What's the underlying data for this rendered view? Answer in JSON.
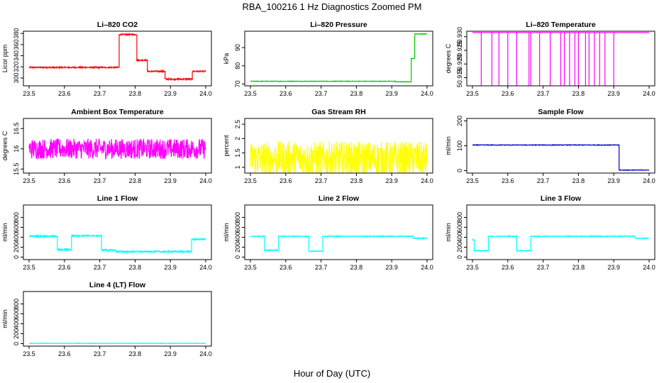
{
  "title": "RBA_100216  1 Hz Diagnostics Zoomed PM",
  "xlabel": "Hour of Day (UTC)",
  "chart_data": [
    {
      "type": "line",
      "title": "Li–820 CO2",
      "ylabel": "Licor ppm",
      "color": "#ff0000",
      "xlim": [
        23.5,
        24.0
      ],
      "ylim": [
        286,
        384
      ],
      "yticks": [
        300,
        320,
        340,
        360,
        380
      ],
      "xticks": [
        23.5,
        23.6,
        23.7,
        23.8,
        23.9,
        24.0
      ],
      "segments": [
        [
          23.5,
          23.755,
          319
        ],
        [
          23.755,
          23.805,
          378
        ],
        [
          23.805,
          23.835,
          332
        ],
        [
          23.835,
          23.885,
          312
        ],
        [
          23.885,
          23.962,
          298
        ],
        [
          23.962,
          24.0,
          312
        ]
      ],
      "noise": 1.2
    },
    {
      "type": "line",
      "title": "Li–820 Pressure",
      "ylabel": "kPa",
      "color": "#00cc00",
      "xlim": [
        23.5,
        24.0
      ],
      "ylim": [
        69,
        99
      ],
      "yticks": [
        70,
        80,
        90
      ],
      "xticks": [
        23.5,
        23.6,
        23.7,
        23.8,
        23.9,
        24.0
      ],
      "segments": [
        [
          23.5,
          23.91,
          71.5
        ],
        [
          23.91,
          23.955,
          71.2
        ],
        [
          23.955,
          23.965,
          84
        ],
        [
          23.965,
          24.0,
          97.5
        ]
      ],
      "noise": 0.15
    },
    {
      "type": "line",
      "title": "Li–820 Temperature",
      "ylabel": "degrees C",
      "color": "#ff00ff",
      "xlim": [
        23.5,
        24.0
      ],
      "ylim": [
        50.912,
        50.932
      ],
      "yticks": [
        50.915,
        50.92,
        50.925,
        50.93
      ],
      "xticks": [
        23.5,
        23.6,
        23.7,
        23.8,
        23.9,
        24.0
      ],
      "segments": [
        [
          23.5,
          24.0,
          50.9315
        ]
      ],
      "drops": [
        23.525,
        23.555,
        23.575,
        23.6,
        23.625,
        23.66,
        23.665,
        23.69,
        23.72,
        23.75,
        23.76,
        23.775,
        23.79,
        23.8,
        23.82,
        23.83,
        23.845,
        23.86,
        23.875,
        23.9
      ],
      "dropto": 50.912,
      "noise": 0
    },
    {
      "type": "line",
      "title": "Ambient Box Temperature",
      "ylabel": "degrees C",
      "color": "#ff00ff",
      "xlim": [
        23.5,
        24.0
      ],
      "ylim": [
        15.4,
        16.75
      ],
      "yticks": [
        15.5,
        16.0,
        16.5
      ],
      "xticks": [
        23.5,
        23.6,
        23.7,
        23.8,
        23.9,
        24.0
      ],
      "segments": [
        [
          23.5,
          24.0,
          16.0
        ]
      ],
      "noise": 0.25
    },
    {
      "type": "line",
      "title": "Gas Stream RH",
      "ylabel": "percent",
      "color": "#ffff00",
      "xlim": [
        23.5,
        24.0
      ],
      "ylim": [
        0.8,
        2.7
      ],
      "yticks": [
        1.0,
        1.5,
        2.0,
        2.5
      ],
      "xticks": [
        23.5,
        23.6,
        23.7,
        23.8,
        23.9,
        24.0
      ],
      "segments": [
        [
          23.5,
          24.0,
          1.3
        ]
      ],
      "noise": 0.6
    },
    {
      "type": "line",
      "title": "Sample Flow",
      "ylabel": "ml/min",
      "color": "#0000cc",
      "xlim": [
        23.5,
        24.0
      ],
      "ylim": [
        -10,
        210
      ],
      "yticks": [
        0,
        100,
        200
      ],
      "xticks": [
        23.5,
        23.6,
        23.7,
        23.8,
        23.9,
        24.0
      ],
      "segments": [
        [
          23.5,
          23.915,
          103
        ],
        [
          23.915,
          24.0,
          2
        ]
      ],
      "noise": 1.2
    },
    {
      "type": "line",
      "title": "Line 1 Flow",
      "ylabel": "ml/min",
      "color": "#00ffff",
      "xlim": [
        23.5,
        24.0
      ],
      "ylim": [
        -50,
        1050
      ],
      "yticks": [
        0,
        200,
        400,
        600,
        800
      ],
      "xticks": [
        23.5,
        23.6,
        23.7,
        23.8,
        23.9,
        24.0
      ],
      "segments": [
        [
          23.5,
          23.58,
          420
        ],
        [
          23.58,
          23.62,
          150
        ],
        [
          23.62,
          23.705,
          430
        ],
        [
          23.705,
          23.745,
          140
        ],
        [
          23.745,
          23.96,
          110
        ],
        [
          23.96,
          24.0,
          360
        ]
      ],
      "noise": 15
    },
    {
      "type": "line",
      "title": "Line 2 Flow",
      "ylabel": "ml/min",
      "color": "#00ffff",
      "xlim": [
        23.5,
        24.0
      ],
      "ylim": [
        -50,
        1050
      ],
      "yticks": [
        0,
        200,
        400,
        600,
        800
      ],
      "xticks": [
        23.5,
        23.6,
        23.7,
        23.8,
        23.9,
        24.0
      ],
      "segments": [
        [
          23.5,
          23.54,
          420
        ],
        [
          23.54,
          23.58,
          140
        ],
        [
          23.58,
          23.665,
          420
        ],
        [
          23.665,
          23.705,
          120
        ],
        [
          23.705,
          23.96,
          420
        ],
        [
          23.96,
          24.0,
          380
        ]
      ],
      "noise": 8
    },
    {
      "type": "line",
      "title": "Line 3 Flow",
      "ylabel": "ml/min",
      "color": "#00ffff",
      "xlim": [
        23.5,
        24.0
      ],
      "ylim": [
        -50,
        1050
      ],
      "yticks": [
        0,
        200,
        400,
        600,
        800
      ],
      "xticks": [
        23.5,
        23.6,
        23.7,
        23.8,
        23.9,
        24.0
      ],
      "segments": [
        [
          23.5,
          23.505,
          350
        ],
        [
          23.505,
          23.545,
          130
        ],
        [
          23.545,
          23.625,
          420
        ],
        [
          23.625,
          23.665,
          130
        ],
        [
          23.665,
          23.96,
          420
        ],
        [
          23.96,
          24.0,
          380
        ]
      ],
      "noise": 8
    },
    {
      "type": "line",
      "title": "Line 4 (LT) Flow",
      "ylabel": "ml/min",
      "color": "#00ffff",
      "xlim": [
        23.5,
        24.0
      ],
      "ylim": [
        -50,
        1050
      ],
      "yticks": [
        0,
        200,
        400,
        600,
        800
      ],
      "xticks": [
        23.5,
        23.6,
        23.7,
        23.8,
        23.9,
        24.0
      ],
      "segments": [
        [
          23.5,
          24.0,
          5
        ]
      ],
      "noise": 4
    }
  ]
}
